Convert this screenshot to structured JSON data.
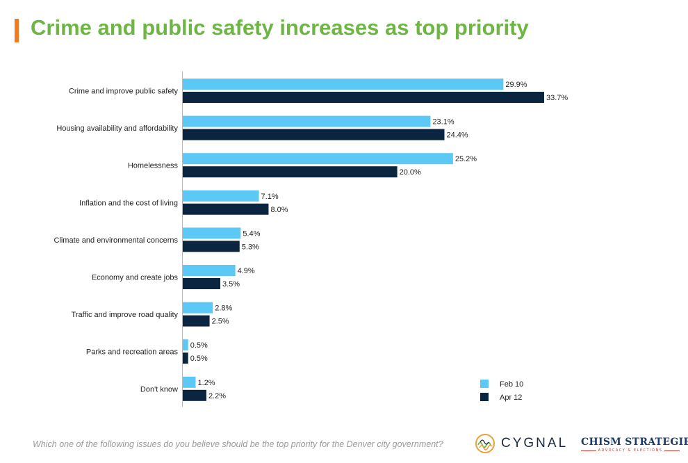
{
  "title": "Crime and public safety increases as top priority",
  "question": "Which one of the following issues do you believe should be the top priority for the Denver city government?",
  "logos": {
    "cygnal": "CYGNAL",
    "chism_main": "CHISM STRATEGIES",
    "chism_sub": "ADVOCACY & ELECTIONS"
  },
  "colors": {
    "title": "#6db544",
    "accent": "#f47a20",
    "series1": "#5bc8f5",
    "series2": "#0b2540"
  },
  "chart_data": {
    "type": "bar",
    "orientation": "horizontal",
    "categories": [
      "Crime and improve public safety",
      "Housing availability and affordability",
      "Homelessness",
      "Inflation and the cost of living",
      "Climate and environmental concerns",
      "Economy and create jobs",
      "Traffic and improve road quality",
      "Parks and recreation areas",
      "Don't know"
    ],
    "series": [
      {
        "name": "Feb 10",
        "color": "#5bc8f5",
        "values": [
          29.9,
          23.1,
          25.2,
          7.1,
          5.4,
          4.9,
          2.8,
          0.5,
          1.2
        ]
      },
      {
        "name": "Apr 12",
        "color": "#0b2540",
        "values": [
          33.7,
          24.4,
          20.0,
          8.0,
          5.3,
          3.5,
          2.5,
          0.5,
          2.2
        ]
      }
    ],
    "value_suffix": "%",
    "xlim": [
      0,
      35
    ],
    "grid": false,
    "legend_position": "bottom-right"
  }
}
